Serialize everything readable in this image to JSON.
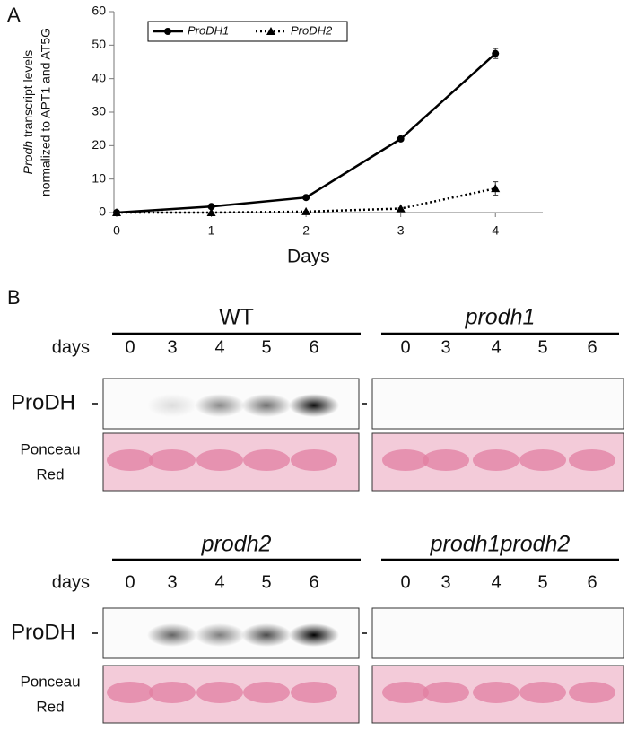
{
  "figure": {
    "panel_a_label": "A",
    "panel_b_label": "B"
  },
  "chart_data": {
    "type": "line",
    "ylabel": {
      "emphasis": "Prodh",
      "rest": "transcript levels",
      "line2": "normalized to APT1 and AT5G"
    },
    "xlabel": "Days",
    "x": [
      0,
      1,
      2,
      3,
      4
    ],
    "xlim": [
      0,
      4.5
    ],
    "xticks": [
      0,
      1,
      2,
      3,
      4
    ],
    "ylim": [
      0,
      60
    ],
    "yticks": [
      0,
      10,
      20,
      30,
      40,
      50,
      60
    ],
    "legend": "upper left",
    "series": [
      {
        "name": "ProDH1",
        "color": "#000000",
        "dash": "solid",
        "marker": "circle",
        "values": [
          0,
          1.8,
          4.5,
          22,
          47.5
        ],
        "errors": [
          0,
          0.2,
          0.3,
          0.5,
          1.5
        ]
      },
      {
        "name": "ProDH2",
        "color": "#000000",
        "dash": "dotted",
        "marker": "triangle",
        "values": [
          0,
          0,
          0.3,
          1.2,
          7.2
        ],
        "errors": [
          0,
          0,
          0.1,
          0.2,
          2
        ]
      }
    ]
  },
  "blot_rows": [
    {
      "days_label": "days",
      "protein_label": "ProDH",
      "stain_label": [
        "Ponceau",
        "Red"
      ],
      "panels": [
        {
          "title": "WT",
          "days": [
            0,
            3,
            4,
            5,
            6
          ]
        },
        {
          "title": "prodh1",
          "days": [
            0,
            3,
            4,
            5,
            6
          ]
        }
      ]
    },
    {
      "days_label": "days",
      "protein_label": "ProDH",
      "stain_label": [
        "Ponceau",
        "Red"
      ],
      "panels": [
        {
          "title": "prodh2",
          "days": [
            0,
            3,
            4,
            5,
            6
          ]
        },
        {
          "title": "prodh1prodh2",
          "days": [
            0,
            3,
            4,
            5,
            6
          ]
        }
      ]
    }
  ]
}
